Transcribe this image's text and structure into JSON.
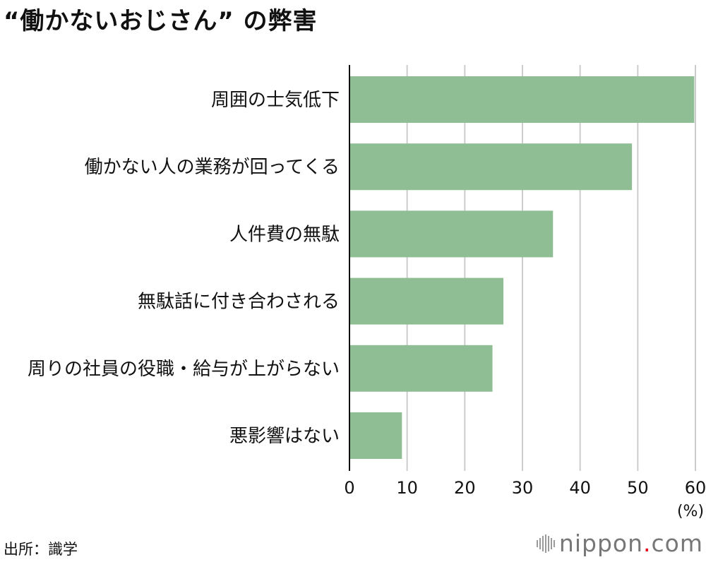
{
  "header": {
    "title": "“働かないおじさん” の弊害"
  },
  "footer": {
    "source": "出所：識学",
    "logo_text_main": "nippon",
    "logo_text_dot": ".",
    "logo_text_tail": "com"
  },
  "chart_data": {
    "type": "bar",
    "orientation": "horizontal",
    "categories": [
      "周囲の士気低下",
      "働かない人の業務が回ってくる",
      "人件費の無駄",
      "無駄話に付き合わされる",
      "周りの社員の役職・給与が上がらない",
      "悪影響はない"
    ],
    "values": [
      59.8,
      49.0,
      35.3,
      26.7,
      24.8,
      9.1
    ],
    "xlim": [
      0,
      60
    ],
    "xticks": [
      0,
      10,
      20,
      30,
      40,
      50,
      60
    ],
    "unit_label": "(%)",
    "grid": true,
    "bar_color": "#8fbe94",
    "grid_color": "#cccccc",
    "axis_color": "#111111"
  }
}
